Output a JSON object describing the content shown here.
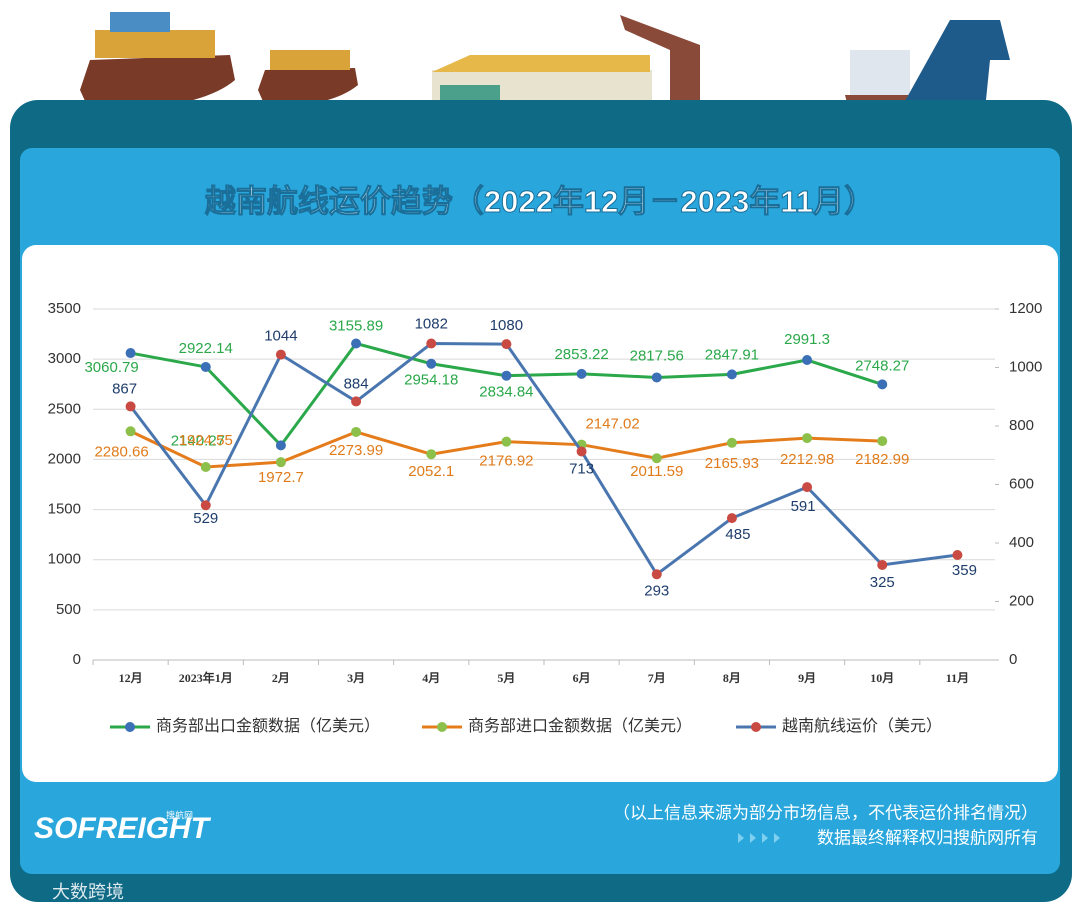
{
  "chart_data": {
    "type": "line",
    "title": "越南航线运价趋势（2022年12月－2023年11月）",
    "categories": [
      "12月",
      "2023年1月",
      "2月",
      "3月",
      "4月",
      "5月",
      "6月",
      "7月",
      "8月",
      "9月",
      "10月",
      "11月"
    ],
    "series": [
      {
        "name": "商务部出口金额数据（亿美元）",
        "color": "#2aa84a",
        "marker_color": "#3b6fb6",
        "label_color": "#2aa84a",
        "values": [
          3060.79,
          2922.14,
          2140.27,
          3155.89,
          2954.18,
          2834.84,
          2853.22,
          2817.56,
          2847.91,
          2991.3,
          2748.27,
          null
        ]
      },
      {
        "name": "商务部进口金额数据（亿美元）",
        "color": "#e57c1c",
        "marker_color": "#8cc04a",
        "label_color": "#e07b1a",
        "values": [
          2280.66,
          1924.55,
          1972.7,
          2273.99,
          2052.1,
          2176.92,
          2147.02,
          2011.59,
          2165.93,
          2212.98,
          2182.99,
          null
        ]
      },
      {
        "name": "越南航线运价（美元）",
        "color": "#4a76b0",
        "marker_color": "#c94a43",
        "label_color": "#1f3d6b",
        "axis": "y2",
        "values": [
          867,
          529,
          1044,
          884,
          1082,
          1080,
          713,
          293,
          485,
          591,
          325,
          359
        ]
      }
    ],
    "ylim": [
      0,
      3500
    ],
    "yticks": [
      0,
      500,
      1000,
      1500,
      2000,
      2500,
      3000,
      3500
    ],
    "y2lim": [
      0,
      1200
    ],
    "y2ticks": [
      0,
      200,
      400,
      600,
      800,
      1000,
      1200
    ],
    "grid": true,
    "legend": "bottom"
  },
  "footer": {
    "note": "（以上信息来源为部分市场信息，不代表运价排名情况）",
    "rights": "数据最终解释权归搜航网所有"
  },
  "logo": {
    "brand": "SOFREIGHT",
    "sub": "搜航网"
  },
  "watermark": "大数跨境"
}
